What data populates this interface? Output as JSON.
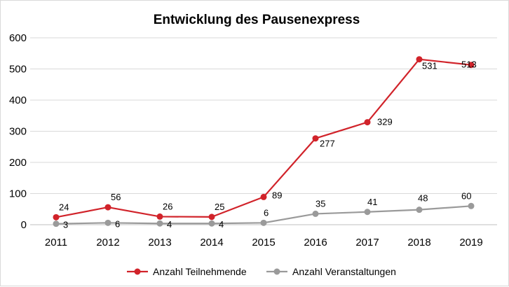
{
  "chart_data": {
    "type": "line",
    "title": "Entwicklung des Pausenexpress",
    "xlabel": "",
    "ylabel": "",
    "categories": [
      "2011",
      "2012",
      "2013",
      "2014",
      "2015",
      "2016",
      "2017",
      "2018",
      "2019"
    ],
    "ylim": [
      0,
      600
    ],
    "yticks": [
      0,
      100,
      200,
      300,
      400,
      500,
      600
    ],
    "grid": true,
    "legend_position": "bottom",
    "series": [
      {
        "name": "Anzahl Teilnehmende",
        "color": "#d1232a",
        "values": [
          24,
          56,
          26,
          25,
          89,
          277,
          329,
          531,
          513
        ]
      },
      {
        "name": "Anzahl Veranstaltungen",
        "color": "#9a9a9a",
        "values": [
          3,
          6,
          4,
          4,
          6,
          35,
          41,
          48,
          60
        ]
      }
    ]
  }
}
